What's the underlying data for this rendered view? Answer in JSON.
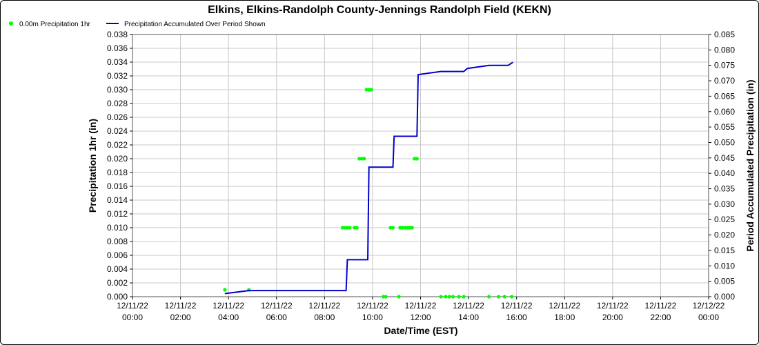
{
  "chart_data": {
    "type": "line",
    "title": "Elkins, Elkins-Randolph County-Jennings Randolph Field (KEKN)",
    "xlabel": "Date/Time (EST)",
    "ylabel_left": "Precipitation 1hr (in)",
    "ylabel_right": "Period Accumulated Precipitation (in)",
    "grid": true,
    "legend_position": "top-left",
    "x_ticks": [
      [
        "12/11/22",
        "00:00"
      ],
      [
        "12/11/22",
        "02:00"
      ],
      [
        "12/11/22",
        "04:00"
      ],
      [
        "12/11/22",
        "06:00"
      ],
      [
        "12/11/22",
        "08:00"
      ],
      [
        "12/11/22",
        "10:00"
      ],
      [
        "12/11/22",
        "12:00"
      ],
      [
        "12/11/22",
        "14:00"
      ],
      [
        "12/11/22",
        "16:00"
      ],
      [
        "12/11/22",
        "18:00"
      ],
      [
        "12/11/22",
        "20:00"
      ],
      [
        "12/11/22",
        "22:00"
      ],
      [
        "12/12/22",
        "00:00"
      ]
    ],
    "xlim_hours": [
      0,
      24
    ],
    "ylim_left": [
      0,
      0.038
    ],
    "yticks_left": [
      "0.000",
      "0.002",
      "0.004",
      "0.006",
      "0.008",
      "0.010",
      "0.012",
      "0.014",
      "0.016",
      "0.018",
      "0.020",
      "0.022",
      "0.024",
      "0.026",
      "0.028",
      "0.030",
      "0.032",
      "0.034",
      "0.036",
      "0.038"
    ],
    "ylim_right": [
      0,
      0.085
    ],
    "yticks_right": [
      "0.000",
      "0.005",
      "0.010",
      "0.015",
      "0.020",
      "0.025",
      "0.030",
      "0.035",
      "0.040",
      "0.045",
      "0.050",
      "0.055",
      "0.060",
      "0.065",
      "0.070",
      "0.075",
      "0.080",
      "0.085"
    ],
    "series": [
      {
        "name": "0.00m Precipitation 1hr",
        "type": "scatter",
        "axis": "left",
        "color": "#00ff00",
        "points": [
          [
            3.85,
            0.001
          ],
          [
            4.85,
            0.001
          ],
          [
            8.75,
            0.01
          ],
          [
            8.85,
            0.01
          ],
          [
            8.95,
            0.01
          ],
          [
            9.05,
            0.01
          ],
          [
            9.25,
            0.01
          ],
          [
            9.35,
            0.01
          ],
          [
            9.45,
            0.02
          ],
          [
            9.55,
            0.02
          ],
          [
            9.65,
            0.02
          ],
          [
            9.75,
            0.03
          ],
          [
            9.85,
            0.03
          ],
          [
            9.95,
            0.03
          ],
          [
            10.45,
            0.0
          ],
          [
            10.55,
            0.0
          ],
          [
            10.75,
            0.01
          ],
          [
            10.85,
            0.01
          ],
          [
            11.1,
            0.0
          ],
          [
            11.15,
            0.01
          ],
          [
            11.25,
            0.01
          ],
          [
            11.35,
            0.01
          ],
          [
            11.45,
            0.01
          ],
          [
            11.55,
            0.01
          ],
          [
            11.65,
            0.01
          ],
          [
            11.75,
            0.02
          ],
          [
            11.85,
            0.02
          ],
          [
            12.85,
            0.0
          ],
          [
            13.05,
            0.0
          ],
          [
            13.2,
            0.0
          ],
          [
            13.35,
            0.0
          ],
          [
            13.6,
            0.0
          ],
          [
            13.8,
            0.0
          ],
          [
            14.85,
            0.0
          ],
          [
            15.25,
            0.0
          ],
          [
            15.5,
            0.0
          ],
          [
            15.8,
            0.0
          ]
        ]
      },
      {
        "name": "Precipitation Accumulated Over Period Shown",
        "type": "line",
        "axis": "right",
        "color": "#0000cc",
        "points": [
          [
            3.85,
            0.001
          ],
          [
            4.85,
            0.002
          ],
          [
            8.9,
            0.002
          ],
          [
            8.95,
            0.012
          ],
          [
            9.8,
            0.012
          ],
          [
            9.85,
            0.042
          ],
          [
            10.85,
            0.042
          ],
          [
            10.9,
            0.052
          ],
          [
            11.85,
            0.052
          ],
          [
            11.9,
            0.072
          ],
          [
            12.85,
            0.073
          ],
          [
            13.8,
            0.073
          ],
          [
            13.95,
            0.074
          ],
          [
            14.85,
            0.075
          ],
          [
            15.65,
            0.075
          ],
          [
            15.85,
            0.076
          ]
        ]
      }
    ]
  }
}
